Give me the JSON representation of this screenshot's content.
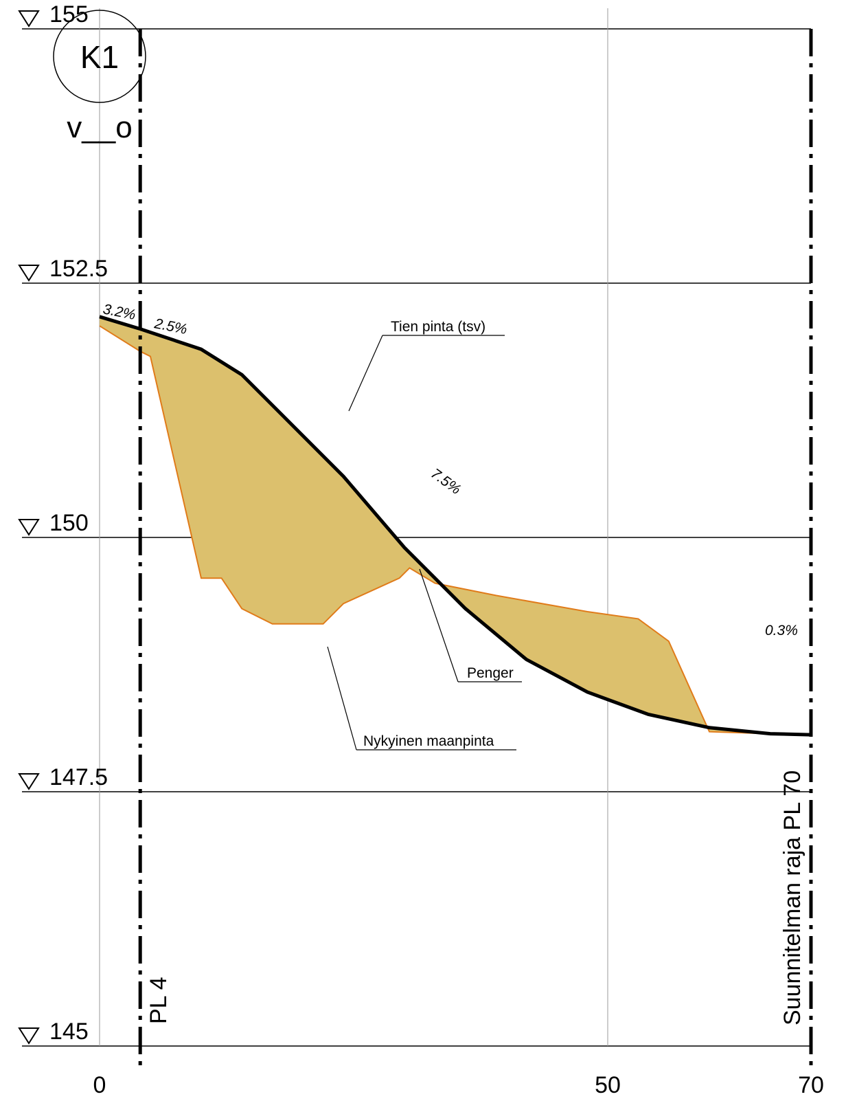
{
  "section": {
    "id": "K1",
    "code": "v__o"
  },
  "levels": [
    {
      "value": 155,
      "label": "155"
    },
    {
      "value": 152.5,
      "label": "152.5"
    },
    {
      "value": 150,
      "label": "150"
    },
    {
      "value": 147.5,
      "label": "147.5"
    },
    {
      "value": 145,
      "label": "145"
    }
  ],
  "distances": [
    {
      "value": 0,
      "label": "0"
    },
    {
      "value": 50,
      "label": "50"
    },
    {
      "value": 70,
      "label": "70"
    }
  ],
  "markers": {
    "left": {
      "station": 4,
      "label": "PL 4"
    },
    "right": {
      "station": 70,
      "label": "PL 70",
      "text": "Suunnitelman raja"
    }
  },
  "labels": {
    "road_surface": "Tien pinta (tsv)",
    "embankment": "Penger",
    "ground": "Nykyinen maanpinta"
  },
  "slopes": [
    {
      "label": "3.2%"
    },
    {
      "label": "2.5%"
    },
    {
      "label": "7.5%"
    },
    {
      "label": "0.3%"
    }
  ],
  "colors": {
    "fill": "#dcc06d",
    "ground_line": "#e07b1a",
    "road_line": "#000000"
  },
  "profiles": {
    "road_surface": [
      [
        0,
        152.17
      ],
      [
        4,
        152.05
      ],
      [
        10,
        151.85
      ],
      [
        14,
        151.6
      ],
      [
        18,
        151.2
      ],
      [
        24,
        150.6
      ],
      [
        30,
        149.9
      ],
      [
        36,
        149.3
      ],
      [
        42,
        148.8
      ],
      [
        48,
        148.48
      ],
      [
        54,
        148.26
      ],
      [
        60,
        148.13
      ],
      [
        66,
        148.07
      ],
      [
        70,
        148.06
      ]
    ],
    "ground": [
      [
        0,
        152.08
      ],
      [
        4,
        151.83
      ],
      [
        5,
        151.78
      ],
      [
        10,
        149.6
      ],
      [
        12,
        149.6
      ],
      [
        14,
        149.3
      ],
      [
        17,
        149.15
      ],
      [
        22,
        149.15
      ],
      [
        24,
        149.35
      ],
      [
        29.5,
        149.6
      ],
      [
        30.5,
        149.7
      ],
      [
        33,
        149.55
      ],
      [
        39,
        149.43
      ],
      [
        48,
        149.27
      ],
      [
        53,
        149.2
      ],
      [
        56,
        148.98
      ],
      [
        60,
        148.09
      ],
      [
        66,
        148.07
      ]
    ]
  }
}
